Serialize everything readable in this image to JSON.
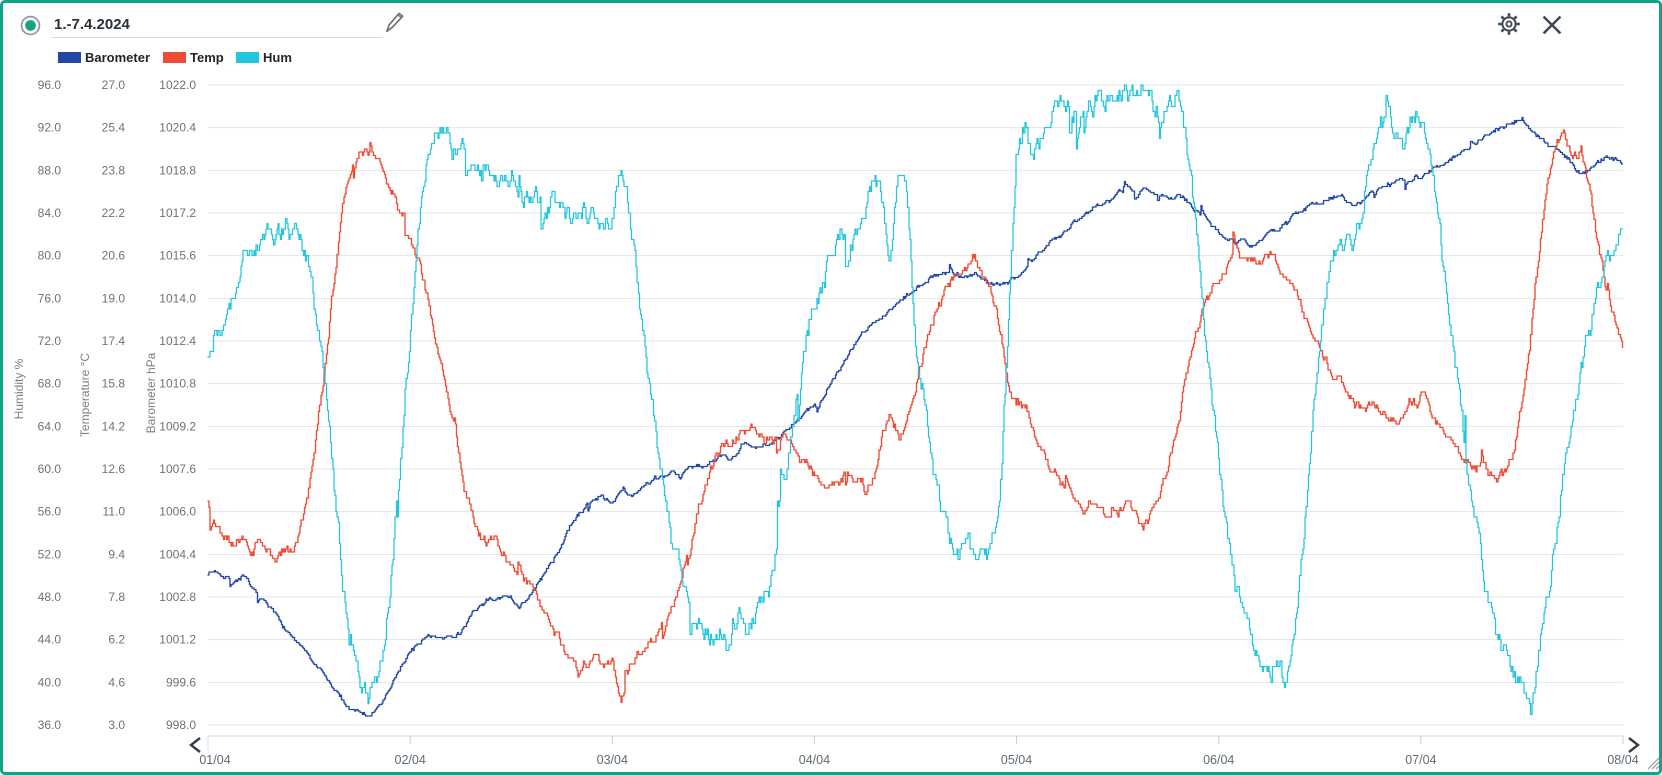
{
  "header": {
    "title": "1.-7.4.2024"
  },
  "legend": {
    "items": [
      {
        "label": "Barometer",
        "color": "#2247a5"
      },
      {
        "label": "Temp",
        "color": "#ef4b36"
      },
      {
        "label": "Hum",
        "color": "#25c5dd"
      }
    ]
  },
  "chart_data": {
    "type": "line",
    "title": "",
    "x_axis": {
      "tick_labels": [
        "01/04",
        "02/04",
        "03/04",
        "04/04",
        "05/04",
        "06/04",
        "07/04",
        "08/04"
      ],
      "range_hours": [
        0,
        168
      ],
      "step_hours": 1
    },
    "grid": true,
    "legend_position": "top-left",
    "axes": [
      {
        "label": "Humidity %",
        "range": [
          36,
          96
        ],
        "ticks": [
          96.0,
          92.0,
          88.0,
          84.0,
          80.0,
          76.0,
          72.0,
          68.0,
          64.0,
          60.0,
          56.0,
          52.0,
          48.0,
          44.0,
          40.0,
          36.0
        ]
      },
      {
        "label": "Temperature °C",
        "range": [
          3,
          27
        ],
        "ticks": [
          27.0,
          25.4,
          23.8,
          22.2,
          20.6,
          19.0,
          17.4,
          15.8,
          14.2,
          12.6,
          11.0,
          9.4,
          7.8,
          6.2,
          4.6,
          3.0
        ]
      },
      {
        "label": "Barometer hPa",
        "range": [
          998,
          1022
        ],
        "ticks": [
          1022.0,
          1020.4,
          1018.8,
          1017.2,
          1015.6,
          1014.0,
          1012.4,
          1010.8,
          1009.2,
          1007.6,
          1006.0,
          1004.4,
          1002.8,
          1001.2,
          999.6,
          998.0
        ]
      }
    ],
    "series": [
      {
        "name": "Barometer",
        "unit": "hPa",
        "axis": "Barometer hPa",
        "color": "#2247a5",
        "values": [
          1003.7,
          1003.8,
          1003.6,
          1003.4,
          1003.6,
          1003.2,
          1002.8,
          1002.4,
          1002.1,
          1001.7,
          1001.3,
          1000.9,
          1000.5,
          1000.1,
          999.7,
          999.3,
          998.9,
          998.6,
          998.5,
          998.4,
          998.6,
          999.0,
          999.6,
          1000.2,
          1000.8,
          1001.1,
          1001.3,
          1001.2,
          1001.4,
          1001.3,
          1001.6,
          1002.0,
          1002.4,
          1002.7,
          1002.6,
          1002.8,
          1002.7,
          1002.5,
          1002.8,
          1003.2,
          1003.7,
          1004.2,
          1004.8,
          1005.4,
          1005.9,
          1006.3,
          1006.6,
          1006.5,
          1006.4,
          1006.7,
          1006.5,
          1006.8,
          1007.1,
          1007.3,
          1007.2,
          1007.4,
          1007.3,
          1007.6,
          1007.8,
          1007.7,
          1007.9,
          1008.1,
          1008.0,
          1008.2,
          1008.4,
          1008.3,
          1008.5,
          1008.7,
          1008.9,
          1009.1,
          1009.4,
          1009.7,
          1010.0,
          1010.4,
          1010.9,
          1011.4,
          1011.9,
          1012.4,
          1012.8,
          1013.1,
          1013.3,
          1013.6,
          1013.8,
          1014.1,
          1014.4,
          1014.6,
          1014.8,
          1014.9,
          1015.0,
          1014.9,
          1014.8,
          1014.9,
          1014.7,
          1014.6,
          1014.5,
          1014.6,
          1014.8,
          1015.1,
          1015.4,
          1015.8,
          1016.1,
          1016.4,
          1016.6,
          1016.9,
          1017.2,
          1017.4,
          1017.6,
          1017.7,
          1017.9,
          1018.0,
          1017.9,
          1018.1,
          1017.9,
          1018.0,
          1017.8,
          1017.9,
          1017.7,
          1017.4,
          1017.1,
          1016.8,
          1016.5,
          1016.3,
          1016.1,
          1016.2,
          1016.0,
          1016.2,
          1016.4,
          1016.6,
          1016.9,
          1017.1,
          1017.3,
          1017.5,
          1017.6,
          1017.8,
          1017.9,
          1017.7,
          1017.5,
          1017.6,
          1017.9,
          1018.1,
          1018.3,
          1018.4,
          1018.5,
          1018.5,
          1018.6,
          1018.8,
          1019.0,
          1019.1,
          1019.3,
          1019.5,
          1019.7,
          1019.9,
          1020.1,
          1020.3,
          1020.5,
          1020.6,
          1020.7,
          1020.3,
          1020.0,
          1019.9,
          1019.6,
          1019.4,
          1019.0,
          1018.7,
          1018.8,
          1019.1,
          1019.3,
          1019.2,
          1019.1
        ]
      },
      {
        "name": "Temp",
        "unit": "°C",
        "axis": "Temperature °C",
        "color": "#ef4b36",
        "values": [
          11.4,
          10.6,
          10.1,
          9.8,
          10.3,
          9.4,
          9.9,
          9.5,
          9.1,
          9.7,
          9.3,
          10.4,
          11.8,
          14.2,
          17.0,
          19.8,
          22.4,
          23.8,
          24.5,
          24.6,
          24.1,
          23.5,
          22.8,
          22.1,
          21.3,
          20.3,
          19.1,
          17.7,
          16.1,
          14.4,
          12.8,
          11.4,
          10.3,
          9.7,
          9.9,
          9.4,
          9.0,
          8.7,
          8.3,
          7.8,
          7.2,
          6.6,
          6.0,
          5.4,
          4.9,
          5.3,
          5.6,
          5.3,
          5.4,
          3.7,
          5.1,
          5.7,
          6.1,
          6.4,
          6.8,
          7.4,
          8.3,
          9.5,
          10.8,
          11.9,
          12.8,
          13.4,
          13.7,
          13.9,
          14.1,
          13.8,
          14.0,
          13.7,
          13.9,
          13.6,
          13.1,
          12.8,
          12.4,
          12.1,
          11.9,
          12.2,
          12.8,
          12.2,
          11.7,
          12.4,
          13.8,
          14.7,
          13.9,
          14.4,
          15.6,
          17.0,
          18.2,
          19.0,
          19.6,
          19.9,
          20.3,
          20.6,
          19.8,
          19.0,
          17.8,
          16.0,
          15.2,
          15.1,
          14.2,
          13.2,
          12.5,
          12.1,
          11.8,
          11.4,
          11.1,
          11.2,
          10.8,
          10.7,
          10.9,
          11.3,
          10.8,
          10.6,
          11.0,
          11.7,
          12.8,
          14.2,
          15.8,
          17.2,
          18.4,
          19.3,
          19.9,
          20.3,
          20.5,
          20.2,
          20.6,
          20.3,
          20.7,
          20.2,
          19.8,
          19.2,
          18.5,
          17.8,
          17.1,
          16.5,
          16.0,
          15.5,
          15.1,
          14.8,
          15.0,
          14.7,
          14.4,
          14.6,
          14.9,
          15.1,
          15.3,
          14.9,
          14.4,
          13.9,
          13.5,
          13.1,
          12.8,
          12.6,
          12.4,
          12.3,
          12.5,
          13.4,
          15.2,
          17.8,
          20.8,
          23.2,
          24.8,
          25.2,
          24.3,
          24.7,
          23.2,
          21.0,
          19.2,
          18.0,
          17.3
        ]
      },
      {
        "name": "Hum",
        "unit": "%",
        "axis": "Humidity %",
        "color": "#25c5dd",
        "values": [
          71,
          72.5,
          74.5,
          77,
          79,
          80.5,
          81,
          82,
          81.5,
          82.5,
          82,
          81,
          78.5,
          74,
          67,
          58,
          49,
          43,
          39.5,
          38.5,
          40,
          45,
          53,
          63,
          73,
          82,
          89,
          92.5,
          91.5,
          90,
          90.5,
          89,
          88,
          88.5,
          87,
          86.5,
          87.5,
          86,
          85,
          86,
          84.5,
          85.5,
          84,
          83,
          84,
          82.5,
          83.5,
          82,
          84,
          88.5,
          84,
          78,
          71,
          64,
          58,
          53,
          49.5,
          47,
          46,
          44.5,
          43.5,
          45,
          43,
          45.5,
          43.5,
          46,
          47.5,
          50,
          55,
          61,
          67,
          72,
          76,
          78.5,
          80.5,
          81.5,
          80.5,
          82.5,
          85,
          87.5,
          85.5,
          79.5,
          88,
          85,
          72,
          66,
          60,
          56,
          53,
          52,
          53.5,
          51,
          52.5,
          53,
          58,
          73,
          89,
          92,
          88,
          91,
          93,
          93.5,
          94,
          93.5,
          94.5,
          94,
          95,
          94.5,
          95,
          95.5,
          95,
          95.5,
          94.5,
          93,
          95.5,
          96,
          92,
          85,
          76,
          67,
          59.5,
          53.5,
          49.5,
          46,
          43.5,
          42,
          40.5,
          42,
          39.5,
          44,
          52,
          63.5,
          72,
          77.5,
          80.5,
          82.5,
          81,
          84.5,
          88,
          91,
          92.5,
          91,
          89.5,
          92,
          92.5,
          88.5,
          83.5,
          77.5,
          70.5,
          63.5,
          57.5,
          52,
          47.5,
          44.5,
          42.5,
          41,
          40,
          37.5,
          42.5,
          47.5,
          53.5,
          59.5,
          65,
          69.5,
          73.5,
          77,
          79.5,
          81.5,
          82.5
        ]
      }
    ]
  },
  "style": {
    "border_color": "#12a287",
    "grid_color": "#e3e6e9",
    "tick_text_color": "#6d7277",
    "axis_title_color": "#7a8085",
    "x_label_color": "#5f6a72",
    "icon_color": "#3d4852",
    "indicator_green": "#17a284"
  }
}
